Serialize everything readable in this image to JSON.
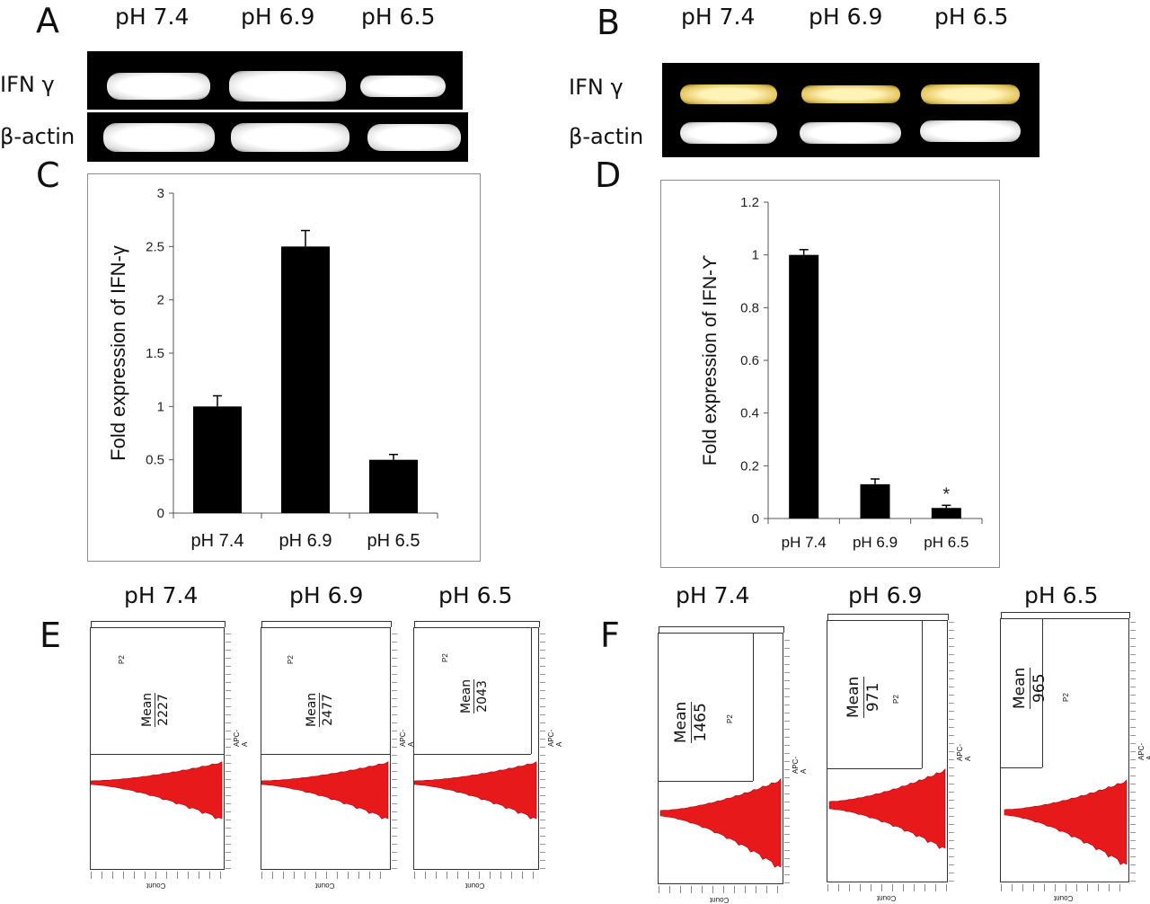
{
  "panels": {
    "A": {
      "letter": "A",
      "lanes": [
        "pH 7.4",
        "pH 6.9",
        "pH 6.5"
      ],
      "genes": [
        "IFN γ",
        "β-actin"
      ]
    },
    "B": {
      "letter": "B",
      "lanes": [
        "pH 7.4",
        "pH 6.9",
        "pH 6.5"
      ],
      "genes": [
        "IFN γ",
        "β-actin"
      ]
    },
    "C": {
      "letter": "C"
    },
    "D": {
      "letter": "D"
    },
    "E": {
      "letter": "E",
      "titles": [
        "pH 7.4",
        "pH 6.9",
        "pH 6.5"
      ],
      "mean_label": "Mean",
      "means": [
        "2227",
        "2477",
        "2043"
      ],
      "gate": "P2",
      "y_axis_label": "APC-A",
      "x_axis_label": "Count"
    },
    "F": {
      "letter": "F",
      "titles": [
        "pH 7.4",
        "pH 6.9",
        "pH 6.5"
      ],
      "mean_label": "Mean",
      "means": [
        "1465",
        "971",
        "965"
      ],
      "gate": "P2",
      "y_axis_label": "APC-A",
      "x_axis_label": "Count"
    }
  },
  "chart_data": [
    {
      "id": "C",
      "type": "bar",
      "categories": [
        "pH 7.4",
        "pH 6.9",
        "pH 6.5"
      ],
      "values": [
        1.0,
        2.5,
        0.5
      ],
      "errors": [
        0.1,
        0.15,
        0.05
      ],
      "ylabel": "Fold expression of IFN-γ",
      "ylim": [
        0,
        3
      ],
      "yticks": [
        "0",
        "0.5",
        "1",
        "1.5",
        "2",
        "2.5",
        "3"
      ],
      "tick_values": [
        0,
        0.5,
        1,
        1.5,
        2,
        2.5,
        3
      ],
      "annotations": [],
      "color": "#000000"
    },
    {
      "id": "D",
      "type": "bar",
      "categories": [
        "pH 7.4",
        "pH 6.9",
        "pH 6.5"
      ],
      "values": [
        1.0,
        0.13,
        0.04
      ],
      "errors": [
        0.02,
        0.02,
        0.01
      ],
      "ylabel": "Fold  expression of IFN-ϒ",
      "ylim": [
        0,
        1.2
      ],
      "yticks": [
        "0",
        "0.2",
        "0.4",
        "0.6",
        "0.8",
        "1",
        "1.2"
      ],
      "tick_values": [
        0,
        0.2,
        0.4,
        0.6,
        0.8,
        1.0,
        1.2
      ],
      "annotations": [
        "",
        "",
        "*"
      ],
      "color": "#000000"
    }
  ],
  "colors": {
    "histogram": "#e8191b",
    "gel": "#000000"
  }
}
